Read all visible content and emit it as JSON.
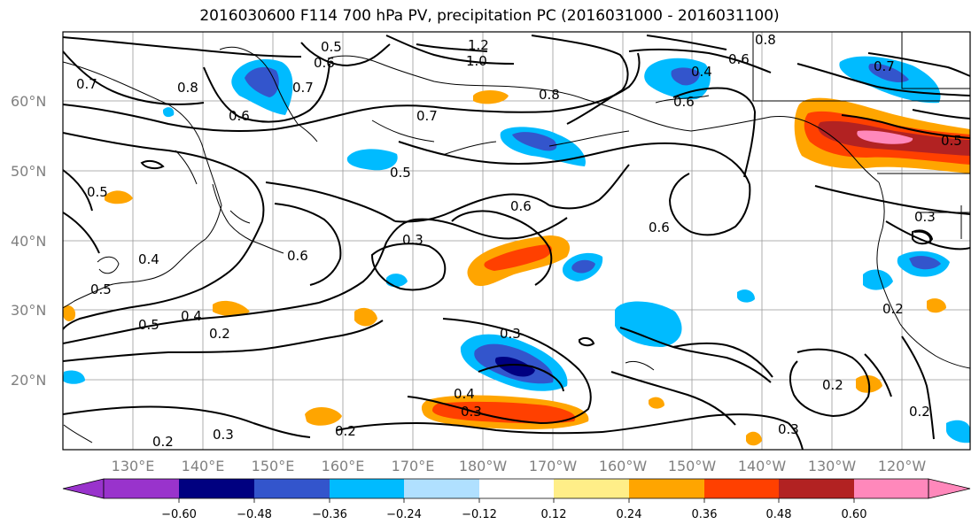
{
  "title": "2016030600 F114 700 hPa PV, precipitation PC (2016031000 - 2016031100)",
  "map": {
    "lat_labels": [
      "60°N",
      "50°N",
      "40°N",
      "30°N",
      "20°N"
    ],
    "lon_labels": [
      "130°E",
      "140°E",
      "150°E",
      "160°E",
      "170°E",
      "180°W",
      "170°W",
      "160°W",
      "150°W",
      "140°W",
      "130°W",
      "120°W"
    ],
    "contour_labels": [
      "0.5",
      "0.6",
      "0.7",
      "0.8",
      "0.7",
      "0.6",
      "1.2",
      "1.0",
      "0.8",
      "0.7",
      "0.6",
      "0.4",
      "0.8",
      "0.7",
      "0.6",
      "0.5",
      "0.5",
      "0.5",
      "0.6",
      "0.4",
      "0.5",
      "0.3",
      "0.6",
      "0.6",
      "0.3",
      "0.5",
      "0.4",
      "0.2",
      "0.3",
      "0.4",
      "0.3",
      "0.2",
      "0.2",
      "0.3",
      "0.2",
      "0.2",
      "0.3",
      "0.2"
    ]
  },
  "colorbar": {
    "ticks": [
      "−0.60",
      "−0.48",
      "−0.36",
      "−0.24",
      "−0.12",
      "0.12",
      "0.24",
      "0.36",
      "0.48",
      "0.60"
    ],
    "colors": [
      "#9933cc",
      "#000080",
      "#3355cc",
      "#00bbff",
      "#b0e0ff",
      "#ffffff",
      "#ffee88",
      "#ffa500",
      "#ff4000",
      "#b22222",
      "#ff88bb"
    ]
  },
  "colors": {
    "neg_strong": "#000080",
    "neg_mid": "#3355cc",
    "neg_light": "#00bbff",
    "neg_pale": "#b0e0ff",
    "pos_pale": "#ffee88",
    "pos_light": "#ffa500",
    "pos_mid": "#ff4000",
    "pos_strong": "#b22222",
    "pos_max": "#ff88bb"
  }
}
